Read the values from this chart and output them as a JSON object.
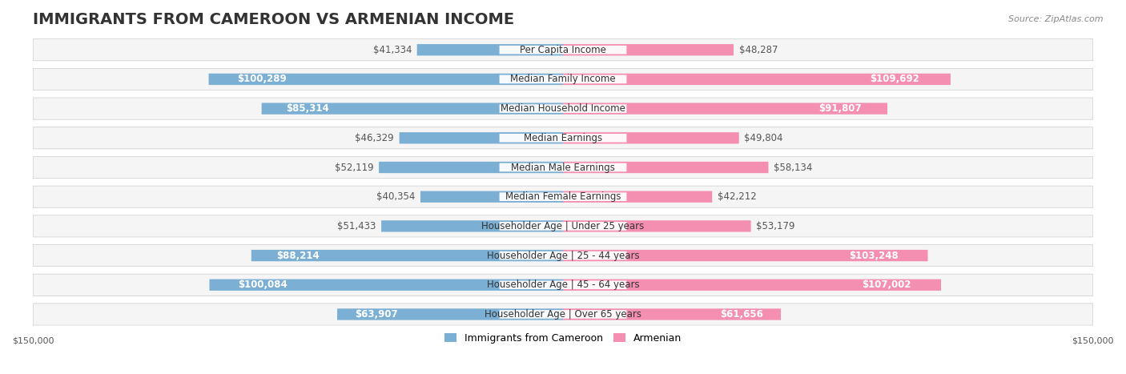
{
  "title": "IMMIGRANTS FROM CAMEROON VS ARMENIAN INCOME",
  "source": "Source: ZipAtlas.com",
  "categories": [
    "Per Capita Income",
    "Median Family Income",
    "Median Household Income",
    "Median Earnings",
    "Median Male Earnings",
    "Median Female Earnings",
    "Householder Age | Under 25 years",
    "Householder Age | 25 - 44 years",
    "Householder Age | 45 - 64 years",
    "Householder Age | Over 65 years"
  ],
  "cameroon_values": [
    41334,
    100289,
    85314,
    46329,
    52119,
    40354,
    51433,
    88214,
    100084,
    63907
  ],
  "armenian_values": [
    48287,
    109692,
    91807,
    49804,
    58134,
    42212,
    53179,
    103248,
    107002,
    61656
  ],
  "cameroon_color": "#7bafd4",
  "armenian_color": "#f48fb1",
  "cameroon_label": "Immigrants from Cameroon",
  "armenian_label": "Armenian",
  "x_max": 150000,
  "background_color": "#ffffff",
  "row_bg_color": "#f5f5f5",
  "title_fontsize": 14,
  "label_fontsize": 8.5,
  "value_fontsize": 8.5,
  "axis_label_fontsize": 8,
  "legend_fontsize": 9
}
